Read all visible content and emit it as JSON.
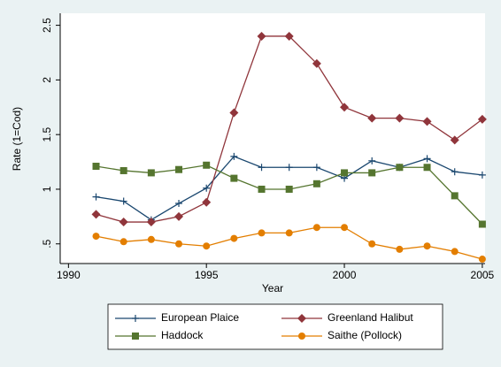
{
  "chart_data": {
    "type": "line",
    "y_label": "Rate (1=Cod)",
    "x_label": "Year",
    "x": [
      1991,
      1992,
      1993,
      1994,
      1995,
      1996,
      1997,
      1998,
      1999,
      2000,
      2001,
      2002,
      2003,
      2004,
      2005
    ],
    "series": [
      {
        "name": "European Plaice",
        "color": "#1a476f",
        "marker": "plus",
        "values": [
          0.93,
          0.89,
          0.72,
          0.87,
          1.01,
          1.3,
          1.2,
          1.2,
          1.2,
          1.1,
          1.26,
          1.2,
          1.28,
          1.16,
          1.13
        ]
      },
      {
        "name": "Greenland Halibut",
        "color": "#90353b",
        "marker": "diamond",
        "values": [
          0.77,
          0.7,
          0.7,
          0.75,
          0.88,
          1.7,
          2.4,
          2.4,
          2.15,
          1.75,
          1.65,
          1.65,
          1.62,
          1.45,
          1.64
        ]
      },
      {
        "name": "Haddock",
        "color": "#55752f",
        "marker": "square",
        "values": [
          1.21,
          1.17,
          1.15,
          1.18,
          1.22,
          1.1,
          1.0,
          1.0,
          1.05,
          1.15,
          1.15,
          1.2,
          1.2,
          0.94,
          0.68
        ]
      },
      {
        "name": "Saithe (Pollock)",
        "color": "#e37e00",
        "marker": "circle",
        "values": [
          0.57,
          0.52,
          0.54,
          0.5,
          0.48,
          0.55,
          0.6,
          0.6,
          0.65,
          0.65,
          0.5,
          0.45,
          0.48,
          0.43,
          0.36
        ]
      }
    ],
    "xlim": [
      1989.7,
      2005.1
    ],
    "xticks": [
      1990,
      1995,
      2000,
      2005
    ],
    "ylim": [
      0.32,
      2.61
    ],
    "yticks": [
      {
        "value": 0.5,
        "label": ".5"
      },
      1,
      1.5,
      2,
      2.5
    ]
  }
}
